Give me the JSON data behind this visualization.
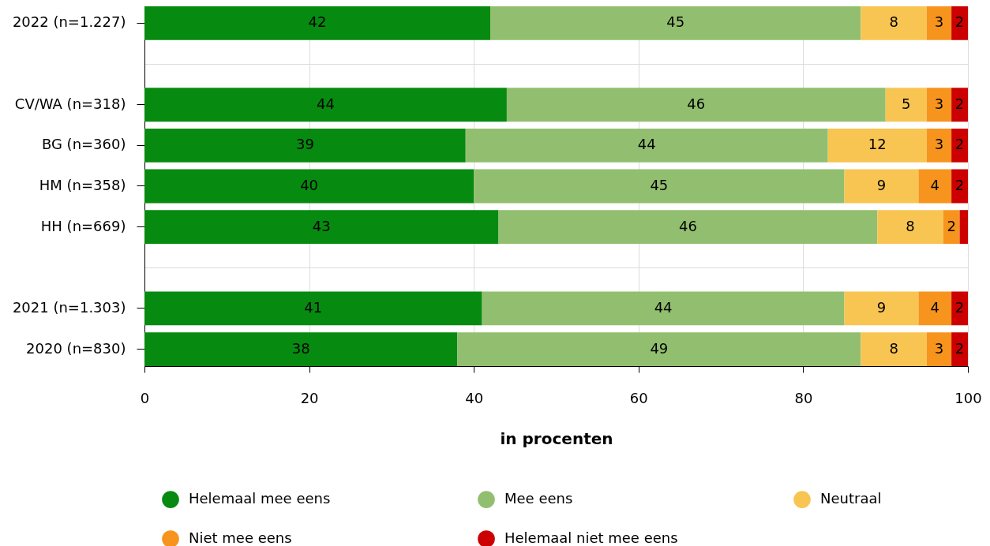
{
  "chart_data": {
    "type": "bar",
    "orientation": "horizontal",
    "stacked": true,
    "xlabel": "in procenten",
    "categories": [
      "2022 (n=1.227)",
      null,
      "CV/WA (n=318)",
      "BG (n=360)",
      "HM (n=358)",
      "HH (n=669)",
      null,
      "2021 (n=1.303)",
      "2020 (n=830)"
    ],
    "xlim": [
      0,
      100
    ],
    "xticks": [
      0,
      20,
      40,
      60,
      80,
      100
    ],
    "grid": true,
    "legend": "bottom",
    "series": [
      {
        "name": "Helemaal mee eens",
        "color": "#078a10",
        "values": [
          42,
          null,
          44,
          39,
          40,
          43,
          null,
          41,
          38
        ],
        "value_labels": [
          "42",
          null,
          "44",
          "39",
          "40",
          "43",
          null,
          "41",
          "38"
        ]
      },
      {
        "name": "Mee eens",
        "color": "#92bf6f",
        "values": [
          45,
          null,
          46,
          44,
          45,
          46,
          null,
          44,
          49
        ],
        "value_labels": [
          "45",
          null,
          "46",
          "44",
          "45",
          "46",
          null,
          "44",
          "49"
        ]
      },
      {
        "name": "Neutraal",
        "color": "#f8c552",
        "values": [
          8,
          null,
          5,
          12,
          9,
          8,
          null,
          9,
          8
        ],
        "value_labels": [
          "8",
          null,
          "5",
          "12",
          "9",
          "8",
          null,
          "9",
          "8"
        ]
      },
      {
        "name": "Niet mee eens",
        "color": "#f7941d",
        "values": [
          3,
          null,
          3,
          3,
          4,
          2,
          null,
          4,
          3
        ],
        "value_labels": [
          "3",
          null,
          "3",
          "3",
          "4",
          "2",
          null,
          "4",
          "3"
        ]
      },
      {
        "name": "Helemaal niet mee eens",
        "color": "#cc0000",
        "values": [
          2,
          null,
          2,
          2,
          2,
          1,
          null,
          2,
          2
        ],
        "value_labels": [
          "2",
          null,
          "2",
          "2",
          "2",
          null,
          null,
          "2",
          "2"
        ]
      }
    ]
  }
}
